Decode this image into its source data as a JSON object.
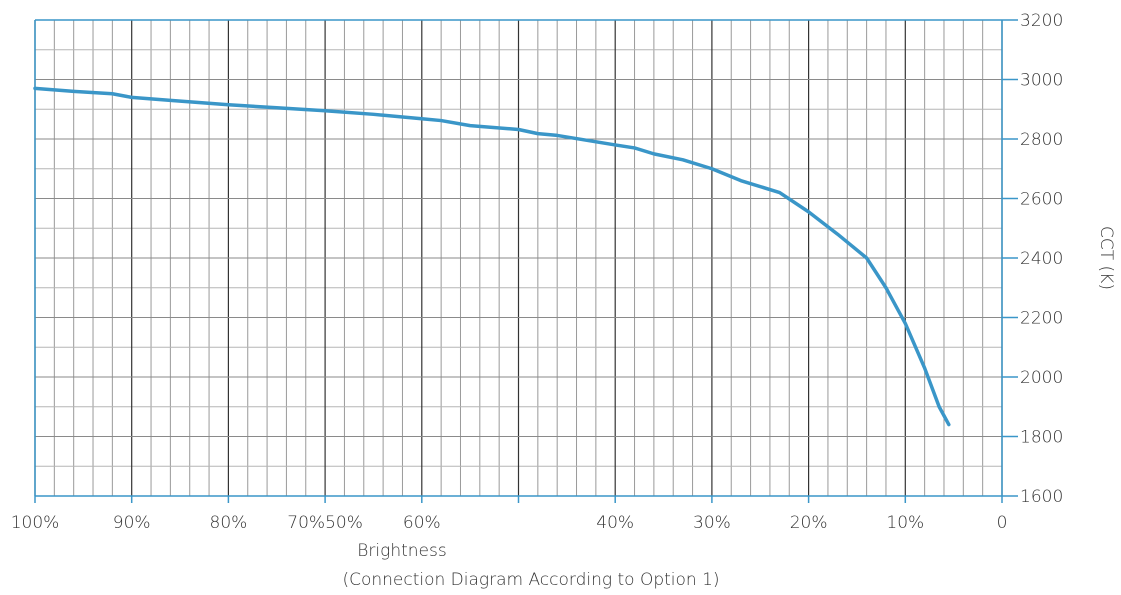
{
  "chart_data": {
    "type": "line",
    "title": "",
    "xlabel": "Brightness",
    "xlabel_sub": "(Connection Diagram According to Option 1)",
    "ylabel": "CCT (K)",
    "x_direction": "decreasing-left-to-right",
    "xlim": [
      100,
      0
    ],
    "ylim": [
      1600,
      3200
    ],
    "y_axis_position": "right",
    "grid": true,
    "x_tick_labels": [
      {
        "text": "100%",
        "value": 100
      },
      {
        "text": "90%",
        "value": 90
      },
      {
        "text": "80%",
        "value": 80
      },
      {
        "text": "70%50%",
        "value": 70
      },
      {
        "text": "60%",
        "value": 60
      },
      {
        "text": "40%",
        "value": 40
      },
      {
        "text": "30%",
        "value": 30
      },
      {
        "text": "20%",
        "value": 20
      },
      {
        "text": "10%",
        "value": 10
      },
      {
        "text": "0",
        "value": 0
      }
    ],
    "y_ticks": [
      1600,
      1800,
      2000,
      2200,
      2400,
      2600,
      2800,
      3000,
      3200
    ],
    "series": [
      {
        "color": "#3a96c8",
        "points": [
          [
            100,
            2970
          ],
          [
            96,
            2960
          ],
          [
            92,
            2952
          ],
          [
            90,
            2940
          ],
          [
            86,
            2930
          ],
          [
            80,
            2915
          ],
          [
            75,
            2905
          ],
          [
            70,
            2895
          ],
          [
            65,
            2883
          ],
          [
            60,
            2868
          ],
          [
            58,
            2862
          ],
          [
            55,
            2845
          ],
          [
            50,
            2832
          ],
          [
            48,
            2818
          ],
          [
            46,
            2812
          ],
          [
            40,
            2780
          ],
          [
            38,
            2770
          ],
          [
            36,
            2750
          ],
          [
            33,
            2730
          ],
          [
            30,
            2700
          ],
          [
            27,
            2660
          ],
          [
            23,
            2620
          ],
          [
            20,
            2555
          ],
          [
            17,
            2480
          ],
          [
            14,
            2400
          ],
          [
            12,
            2300
          ],
          [
            10,
            2180
          ],
          [
            8,
            2030
          ],
          [
            6.5,
            1900
          ],
          [
            5.5,
            1840
          ]
        ]
      }
    ]
  }
}
